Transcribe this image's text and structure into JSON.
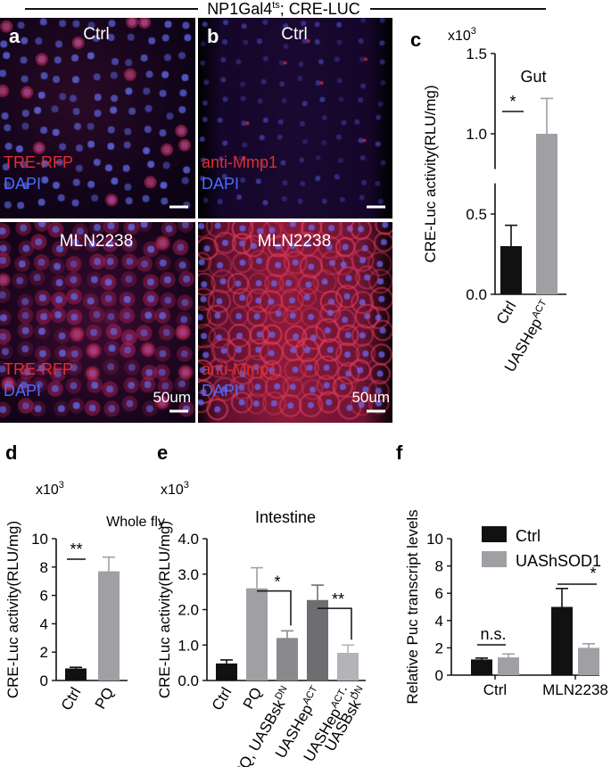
{
  "header": {
    "genotype": "NP1Gal4",
    "genotype_sup": "ts",
    "genotype_rest": "; CRE-LUC"
  },
  "micrographs": {
    "a": {
      "letter": "a",
      "top_label": "Ctrl",
      "bottom_label": "MLN2238",
      "stain": "TRE-RFP",
      "dapi": "DAPI",
      "scale": "50um"
    },
    "b": {
      "letter": "b",
      "top_label": "Ctrl",
      "bottom_label": "MLN2238",
      "stain": "anti-Mmp1",
      "dapi": "DAPI",
      "scale": "50um"
    }
  },
  "colors": {
    "black": "#111111",
    "gray": "#a0a0a4",
    "dark_gray": "#6e6e72",
    "mid_gray": "#8a8a8e",
    "light_gray": "#b4b4b8",
    "red_stain": "#e03030",
    "dapi_blue": "#4a6cff"
  },
  "chart_data": [
    {
      "panel": "c",
      "type": "bar",
      "multiplier": "x10",
      "multiplier_exp": "3",
      "annotation": "Gut",
      "ylabel": "CRE-Luc activity(RLU/mg)",
      "categories": [
        "Ctrl",
        "UASHep"
      ],
      "category_sups": [
        "",
        "ACT"
      ],
      "values": [
        0.3,
        1.0
      ],
      "errors": [
        0.13,
        0.22
      ],
      "y_ticks": [
        "0.0",
        "0.5",
        "1.0",
        "1.5"
      ],
      "ylim": [
        0,
        1.5
      ],
      "axis_break": true,
      "significance": [
        {
          "label": "*",
          "between": [
            0,
            1
          ]
        }
      ]
    },
    {
      "panel": "d",
      "type": "bar",
      "multiplier": "x10",
      "multiplier_exp": "3",
      "annotation": "Whole fly",
      "ylabel": "CRE-Luc activity(RLU/mg)",
      "categories": [
        "Ctrl",
        "PQ"
      ],
      "values": [
        0.85,
        7.7
      ],
      "errors": [
        0.08,
        1.0
      ],
      "y_ticks": [
        "0",
        "2",
        "4",
        "6",
        "8",
        "10"
      ],
      "ylim": [
        0,
        10
      ],
      "significance": [
        {
          "label": "**",
          "between": [
            0,
            1
          ]
        }
      ]
    },
    {
      "panel": "e",
      "type": "bar",
      "multiplier": "x10",
      "multiplier_exp": "3",
      "annotation": "Intestine",
      "ylabel": "CRE-Luc activity(RLU/mg)",
      "categories": [
        "Ctrl",
        "PQ",
        "PQ, UASBsk",
        "UASHep",
        "UASHep"
      ],
      "category_sups": [
        "",
        "",
        "DN",
        "ACT",
        "ACT"
      ],
      "category_line2": [
        "",
        "",
        "",
        "",
        "UASBsk"
      ],
      "category_line2_sups": [
        "",
        "",
        "",
        "",
        "DN"
      ],
      "category_line1_suffix": [
        "",
        "",
        "",
        "",
        ";"
      ],
      "values": [
        0.48,
        2.6,
        1.2,
        2.27,
        0.78
      ],
      "errors": [
        0.1,
        0.58,
        0.2,
        0.42,
        0.22
      ],
      "y_ticks": [
        "0.0",
        "1.0",
        "2.0",
        "3.0",
        "4.0"
      ],
      "ylim": [
        0,
        4
      ],
      "significance": [
        {
          "label": "*",
          "between": [
            1,
            2
          ]
        },
        {
          "label": "**",
          "between": [
            3,
            4
          ]
        }
      ]
    },
    {
      "panel": "f",
      "type": "bar",
      "ylabel": "Relative Puc transcript levels",
      "categories": [
        "Ctrl",
        "MLN2238"
      ],
      "series": [
        {
          "name": "Ctrl",
          "values": [
            1.15,
            5.0
          ],
          "errors": [
            0.1,
            1.35
          ]
        },
        {
          "name": "UAShSOD1",
          "values": [
            1.3,
            2.0
          ],
          "errors": [
            0.25,
            0.3
          ]
        }
      ],
      "y_ticks": [
        "0",
        "2",
        "4",
        "6",
        "8",
        "10"
      ],
      "ylim": [
        0,
        10
      ],
      "legend_position": "top-right",
      "significance": [
        {
          "label": "n.s.",
          "group": 0
        },
        {
          "label": "*",
          "group": 1
        }
      ]
    }
  ]
}
